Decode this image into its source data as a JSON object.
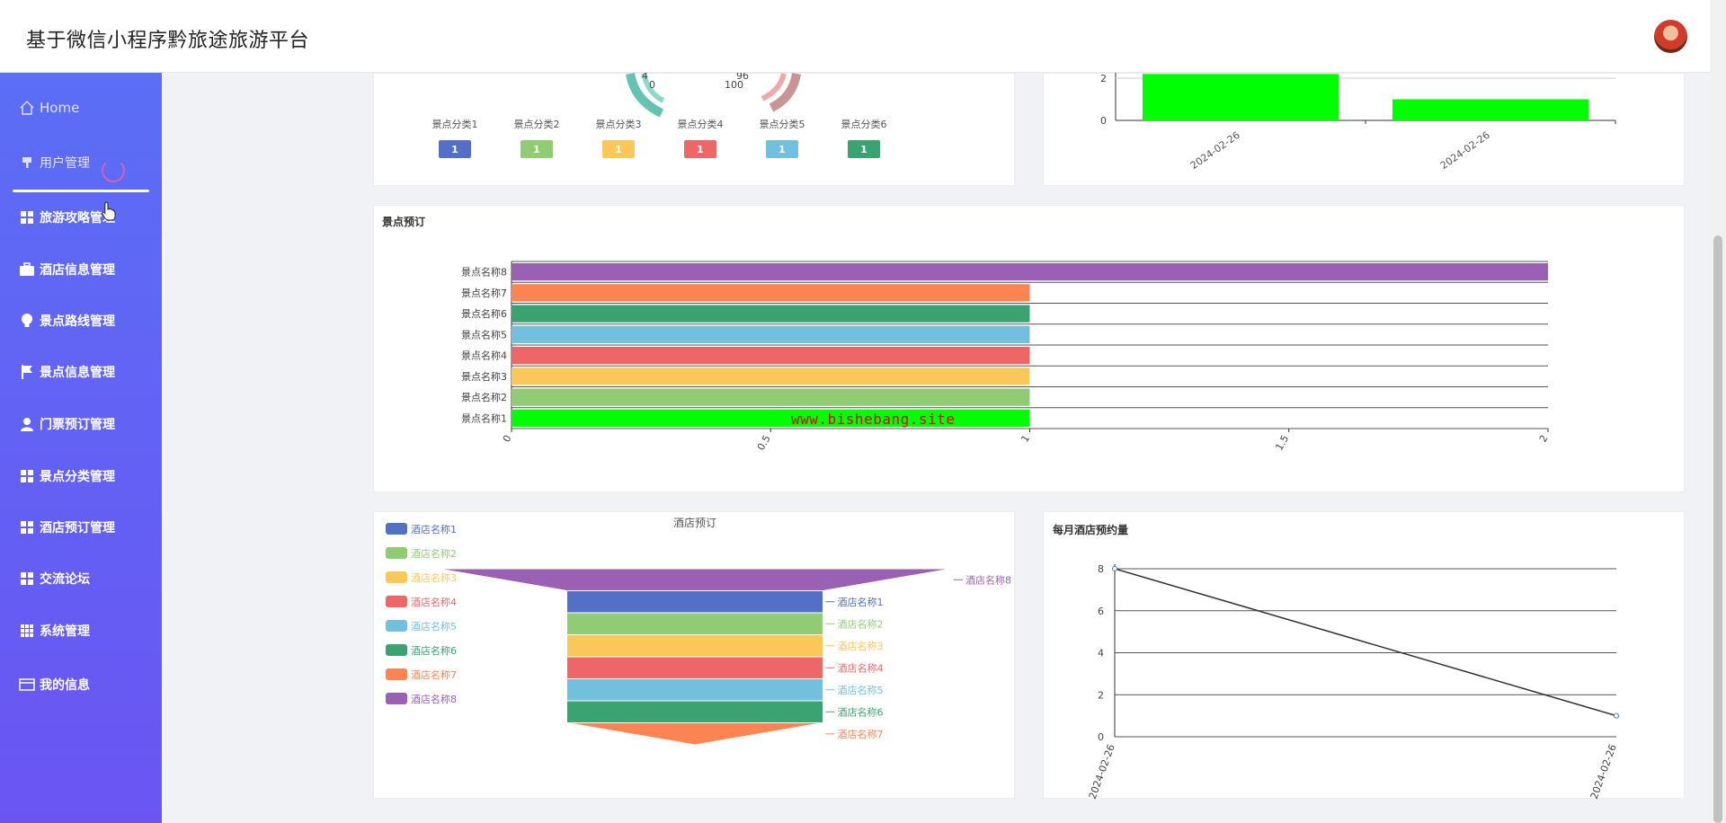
{
  "app": {
    "title": "基于微信小程序黔旅途旅游平台"
  },
  "sidebar": {
    "items": [
      {
        "label": "Home",
        "icon": "home-icon"
      },
      {
        "label": "用户管理",
        "icon": "user-manage-icon"
      },
      {
        "label": "旅游攻略管理",
        "icon": "grid-icon"
      },
      {
        "label": "酒店信息管理",
        "icon": "briefcase-icon"
      },
      {
        "label": "景点路线管理",
        "icon": "bulb-icon"
      },
      {
        "label": "景点信息管理",
        "icon": "flag-icon"
      },
      {
        "label": "门票预订管理",
        "icon": "person-icon"
      },
      {
        "label": "景点分类管理",
        "icon": "grid-icon"
      },
      {
        "label": "酒店预订管理",
        "icon": "grid-icon"
      },
      {
        "label": "交流论坛",
        "icon": "grid-icon"
      },
      {
        "label": "系统管理",
        "icon": "apps-icon"
      },
      {
        "label": "我的信息",
        "icon": "card-icon"
      }
    ]
  },
  "category_panel": {
    "gauge_labels": [
      "4",
      "0",
      "96",
      "100"
    ],
    "legend": [
      {
        "name": "景点分类1",
        "value": "1",
        "color": "#5470c6"
      },
      {
        "name": "景点分类2",
        "value": "1",
        "color": "#91cc75"
      },
      {
        "name": "景点分类3",
        "value": "1",
        "color": "#fac858"
      },
      {
        "name": "景点分类4",
        "value": "1",
        "color": "#ee6666"
      },
      {
        "name": "景点分类5",
        "value": "1",
        "color": "#73c0de"
      },
      {
        "name": "景点分类6",
        "value": "1",
        "color": "#3ba272"
      }
    ]
  },
  "watermark": "www.bishebang.site",
  "chart_data": [
    {
      "type": "bar",
      "categories": [
        "2024-02-26",
        "2024-02-26"
      ],
      "values": [
        2.2,
        1
      ],
      "yticks": [
        "0",
        "2"
      ],
      "color": "#00ff00"
    },
    {
      "type": "bar",
      "orientation": "horizontal",
      "title": "景点预订",
      "categories": [
        "景点名称1",
        "景点名称2",
        "景点名称3",
        "景点名称4",
        "景点名称5",
        "景点名称6",
        "景点名称7",
        "景点名称8"
      ],
      "values": [
        1,
        1,
        1,
        1,
        1,
        1,
        1,
        2
      ],
      "colors": [
        "#00ff00",
        "#91cc75",
        "#fac858",
        "#ee6666",
        "#73c0de",
        "#3ba272",
        "#fc8452",
        "#9a60b4"
      ],
      "xticks": [
        "0",
        "0.5",
        "1",
        "1.5",
        "2"
      ],
      "xlim": [
        0,
        2
      ]
    },
    {
      "type": "funnel",
      "title": "酒店预订",
      "legend": [
        "酒店名称1",
        "酒店名称2",
        "酒店名称3",
        "酒店名称4",
        "酒店名称5",
        "酒店名称6",
        "酒店名称7",
        "酒店名称8"
      ],
      "colors": [
        "#5470c6",
        "#91cc75",
        "#fac858",
        "#ee6666",
        "#73c0de",
        "#3ba272",
        "#fc8452",
        "#9a60b4"
      ],
      "values": [
        1,
        1,
        1,
        1,
        1,
        1,
        1,
        2
      ]
    },
    {
      "type": "line",
      "title": "每月酒店预约量",
      "x": [
        "2024-02-26",
        "2024-02-26"
      ],
      "values": [
        8,
        1
      ],
      "yticks": [
        "0",
        "2",
        "4",
        "6",
        "8"
      ],
      "ylim": [
        0,
        8
      ],
      "color": "#333333"
    }
  ]
}
